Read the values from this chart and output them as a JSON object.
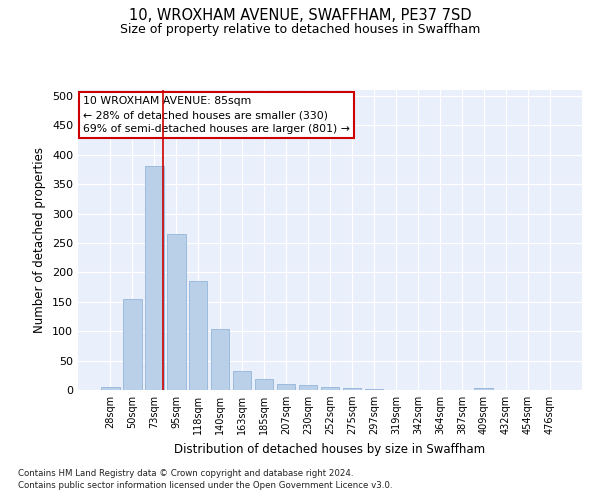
{
  "title1": "10, WROXHAM AVENUE, SWAFFHAM, PE37 7SD",
  "title2": "Size of property relative to detached houses in Swaffham",
  "xlabel": "Distribution of detached houses by size in Swaffham",
  "ylabel": "Number of detached properties",
  "categories": [
    "28sqm",
    "50sqm",
    "73sqm",
    "95sqm",
    "118sqm",
    "140sqm",
    "163sqm",
    "185sqm",
    "207sqm",
    "230sqm",
    "252sqm",
    "275sqm",
    "297sqm",
    "319sqm",
    "342sqm",
    "364sqm",
    "387sqm",
    "409sqm",
    "432sqm",
    "454sqm",
    "476sqm"
  ],
  "values": [
    5,
    155,
    380,
    265,
    185,
    103,
    33,
    18,
    10,
    8,
    5,
    3,
    1,
    0,
    0,
    0,
    0,
    3,
    0,
    0,
    0
  ],
  "bar_color": "#bad0e8",
  "bar_edge_color": "#93b5d8",
  "bg_color": "#eaf0fb",
  "grid_color": "#ffffff",
  "vline_color": "#cc0000",
  "vline_x": 2.42,
  "annotation_text": "10 WROXHAM AVENUE: 85sqm\n← 28% of detached houses are smaller (330)\n69% of semi-detached houses are larger (801) →",
  "annotation_box_color": "#ffffff",
  "annotation_box_edge": "#cc0000",
  "footer1": "Contains HM Land Registry data © Crown copyright and database right 2024.",
  "footer2": "Contains public sector information licensed under the Open Government Licence v3.0.",
  "ylim": [
    0,
    510
  ],
  "yticks": [
    0,
    50,
    100,
    150,
    200,
    250,
    300,
    350,
    400,
    450,
    500
  ]
}
